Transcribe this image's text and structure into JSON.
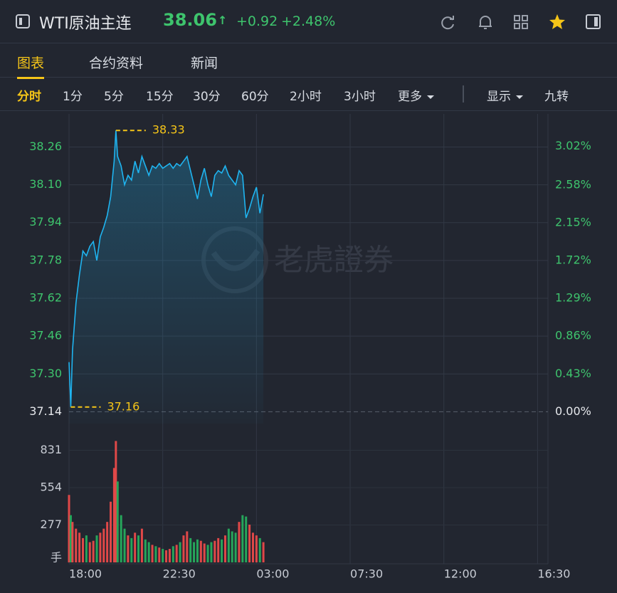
{
  "header": {
    "symbol": "WTI原油主连",
    "price": "38.06",
    "arrow": "↑",
    "change": "+0.92",
    "change_pct": "+2.48%"
  },
  "tabs": [
    "图表",
    "合约资料",
    "新闻"
  ],
  "active_tab": 0,
  "periods": [
    "分时",
    "1分",
    "5分",
    "15分",
    "30分",
    "60分",
    "2小时",
    "3小时",
    "更多"
  ],
  "active_period": 0,
  "tools": [
    "显示",
    "九转"
  ],
  "chart_data": {
    "type": "line",
    "watermark": "老虎證券",
    "color": "#1fb4f0",
    "fill": true,
    "x": [
      "18:00",
      "18:05",
      "18:10",
      "18:20",
      "18:30",
      "18:40",
      "18:50",
      "19:00",
      "19:10",
      "19:20",
      "19:30",
      "19:40",
      "19:50",
      "20:00",
      "20:10",
      "20:15",
      "20:20",
      "20:30",
      "20:40",
      "20:50",
      "21:00",
      "21:10",
      "21:20",
      "21:30",
      "21:40",
      "21:50",
      "22:00",
      "22:10",
      "22:20",
      "22:30",
      "22:40",
      "22:50",
      "23:00",
      "23:10",
      "23:20",
      "23:30",
      "23:40",
      "23:50",
      "00:00",
      "00:10",
      "00:20",
      "00:30",
      "00:40",
      "00:50",
      "01:00",
      "01:10",
      "01:20",
      "01:30",
      "01:40",
      "01:50",
      "02:00",
      "02:10",
      "02:20",
      "02:30",
      "02:40",
      "02:50",
      "03:00",
      "03:10",
      "03:20"
    ],
    "values": [
      37.35,
      37.16,
      37.4,
      37.6,
      37.72,
      37.82,
      37.8,
      37.84,
      37.86,
      37.78,
      37.88,
      37.92,
      37.97,
      38.05,
      38.2,
      38.33,
      38.22,
      38.18,
      38.1,
      38.14,
      38.12,
      38.2,
      38.15,
      38.22,
      38.18,
      38.14,
      38.18,
      38.17,
      38.19,
      38.17,
      38.18,
      38.19,
      38.17,
      38.19,
      38.18,
      38.2,
      38.22,
      38.16,
      38.1,
      38.04,
      38.12,
      38.17,
      38.1,
      38.05,
      38.14,
      38.16,
      38.15,
      38.18,
      38.14,
      38.12,
      38.1,
      38.16,
      38.14,
      37.96,
      38.0,
      38.05,
      38.09,
      37.98,
      38.06
    ],
    "xlim": [
      "18:00",
      "17:00"
    ],
    "xticks": [
      "18:00",
      "22:30",
      "03:00",
      "07:30",
      "12:00",
      "16:30"
    ],
    "ylim": [
      37.09,
      38.4
    ],
    "yticks": [
      37.14,
      {
        "value": 37.3,
        "label": "37.30"
      },
      37.46,
      37.62,
      37.78,
      37.94,
      {
        "value": 38.1,
        "label": "38.10"
      },
      38.26
    ],
    "baseline": 37.14,
    "y2lim": [
      -0.135,
      3.39
    ],
    "y2ticks": [
      {
        "value": 0,
        "label": "0.00%"
      },
      {
        "value": 0.43,
        "label": "0.43%"
      },
      {
        "value": 0.86,
        "label": "0.86%"
      },
      {
        "value": 1.29,
        "label": "1.29%"
      },
      {
        "value": 1.72,
        "label": "1.72%"
      },
      {
        "value": 2.15,
        "label": "2.15%"
      },
      {
        "value": 2.58,
        "label": "2.58%"
      },
      {
        "value": 3.02,
        "label": "3.02%"
      }
    ],
    "grid": true,
    "up_label_color": "#3ec46d",
    "annotations": [
      {
        "x": "20:15",
        "value": 38.33
      },
      {
        "x": "18:05",
        "value": 37.16
      }
    ],
    "annotation_color": "#f5c518",
    "volume": {
      "values": [
        500,
        350,
        300,
        250,
        220,
        180,
        200,
        150,
        160,
        200,
        220,
        250,
        300,
        450,
        700,
        900,
        600,
        350,
        250,
        200,
        180,
        220,
        200,
        250,
        170,
        150,
        130,
        120,
        110,
        100,
        90,
        100,
        120,
        130,
        150,
        200,
        230,
        180,
        150,
        170,
        160,
        140,
        130,
        150,
        160,
        180,
        170,
        200,
        250,
        230,
        220,
        300,
        350,
        340,
        280,
        220,
        200,
        180,
        150
      ],
      "ylim": [
        0,
        950
      ],
      "yticks": [
        277,
        554,
        831
      ],
      "unit": "手",
      "up_color": "#e04848",
      "down_color": "#26a65b"
    }
  }
}
